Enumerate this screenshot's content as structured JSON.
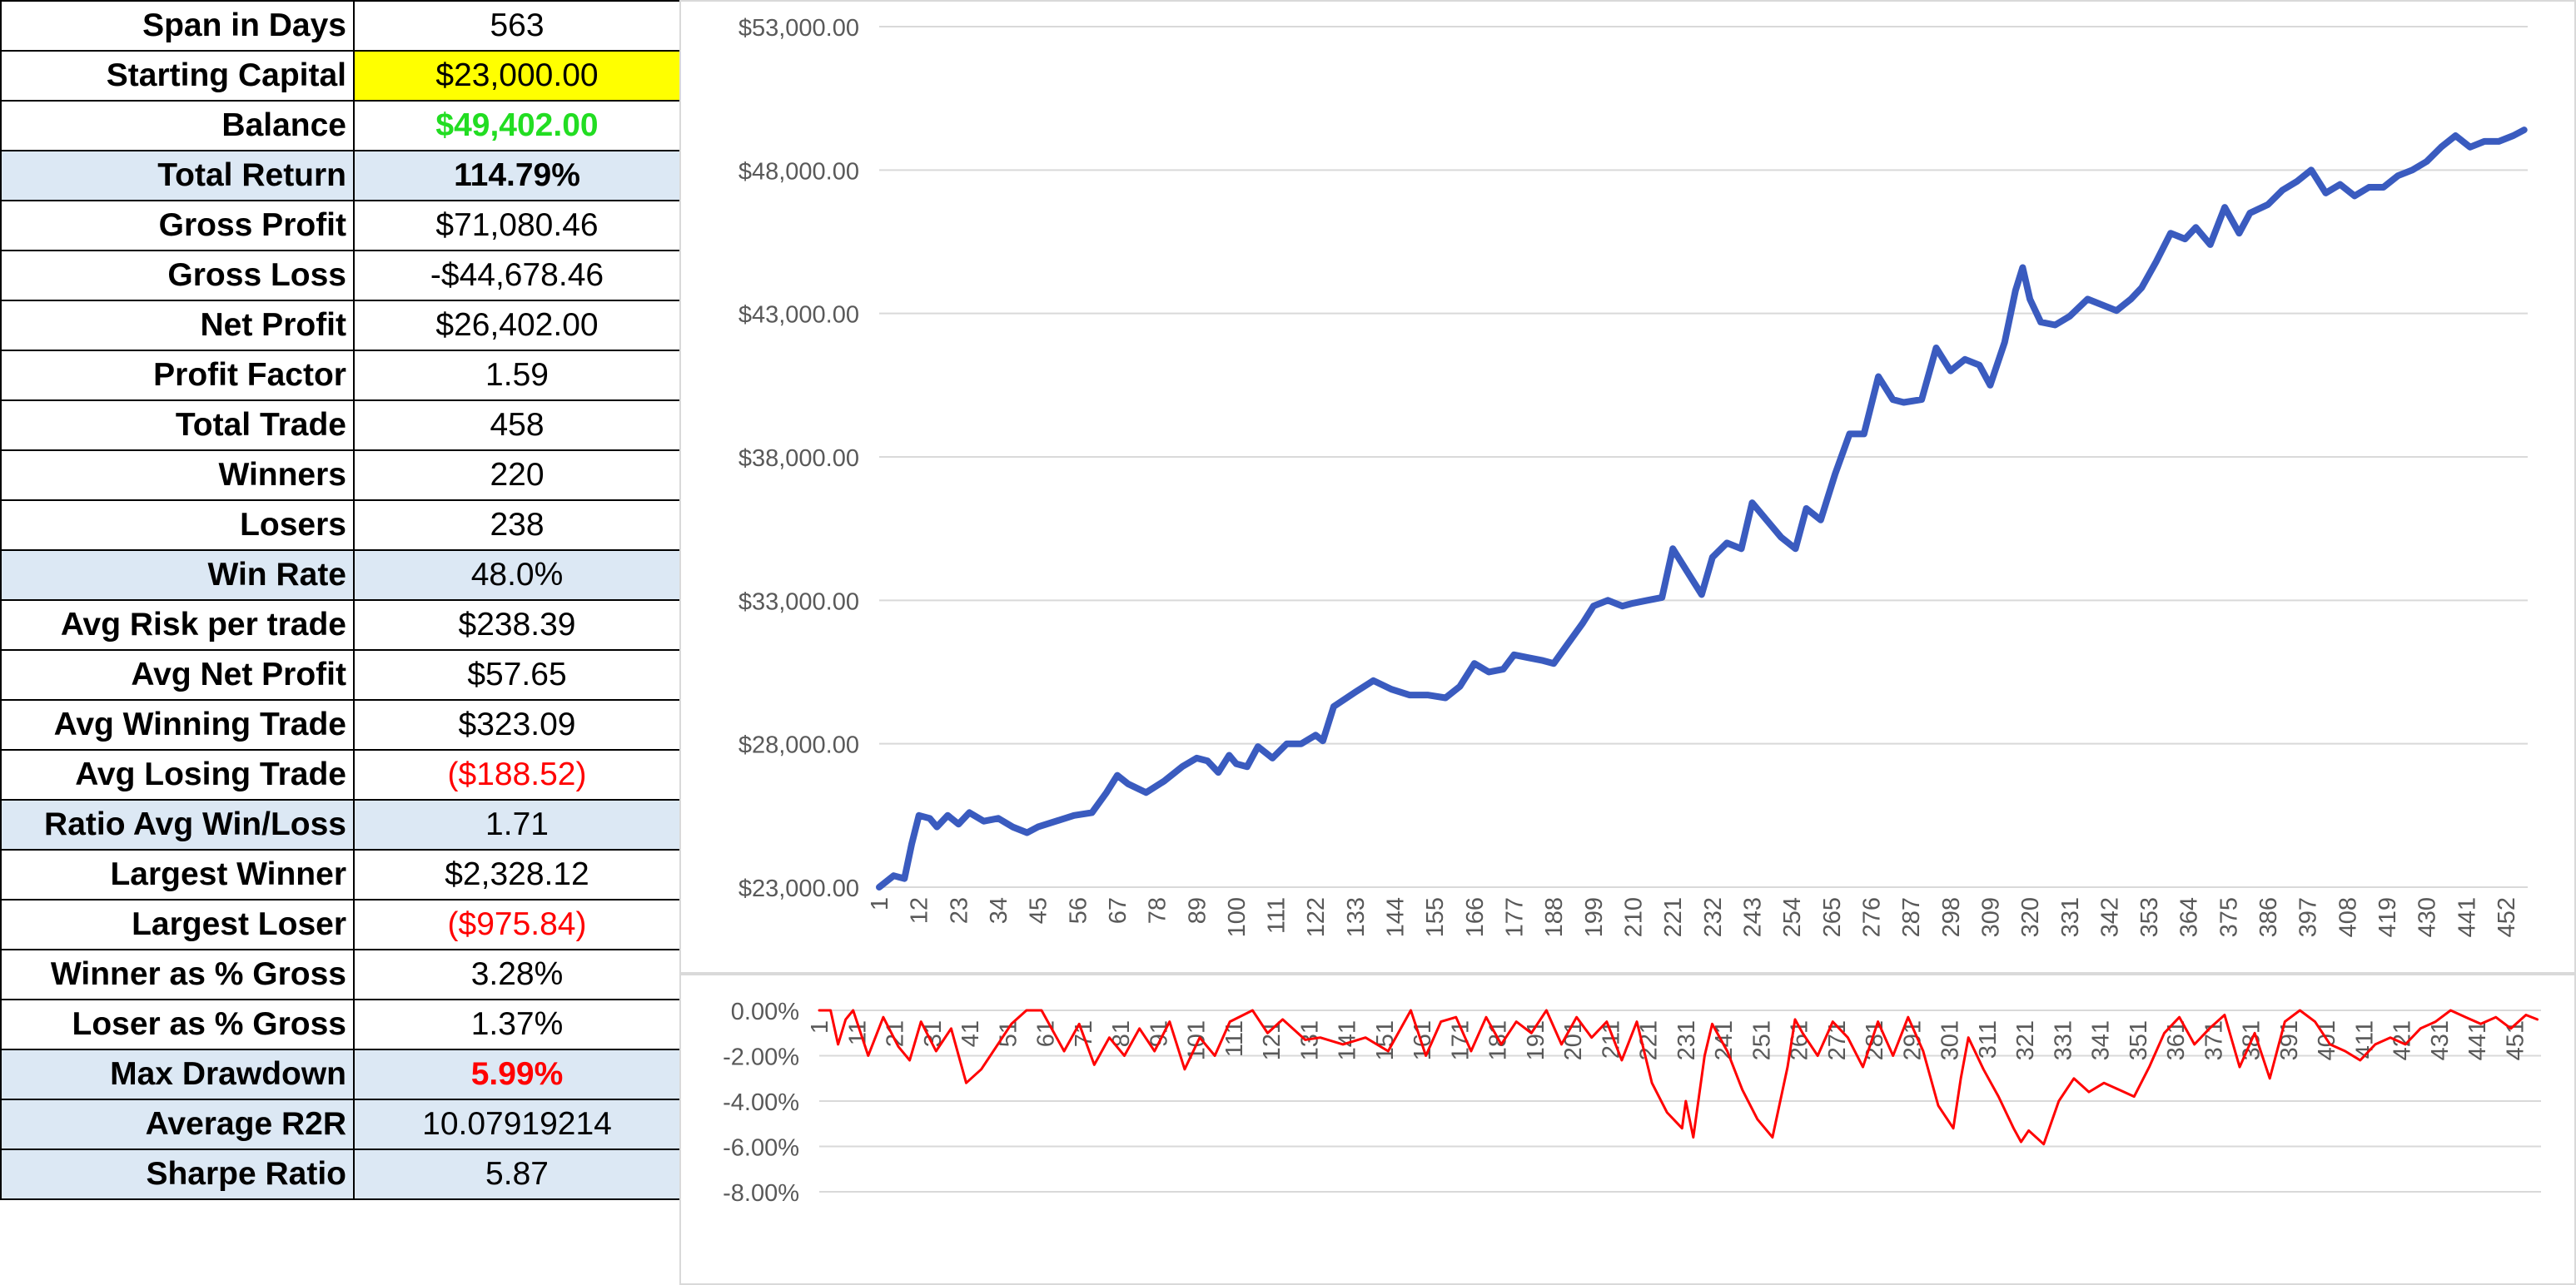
{
  "stats": [
    {
      "label": "Span in Days",
      "value": "563",
      "style": ""
    },
    {
      "label": "Starting Capital",
      "value": "$23,000.00",
      "style": "yel"
    },
    {
      "label": "Balance",
      "value": "$49,402.00",
      "style": "green"
    },
    {
      "label": "Total Return",
      "value": "114.79%",
      "style": "hl bold"
    },
    {
      "label": "Gross Profit",
      "value": "$71,080.46",
      "style": ""
    },
    {
      "label": "Gross Loss",
      "value": "-$44,678.46",
      "style": ""
    },
    {
      "label": "Net Profit",
      "value": "$26,402.00",
      "style": ""
    },
    {
      "label": "Profit Factor",
      "value": "1.59",
      "style": ""
    },
    {
      "label": "Total Trade",
      "value": "458",
      "style": ""
    },
    {
      "label": "Winners",
      "value": "220",
      "style": ""
    },
    {
      "label": "Losers",
      "value": "238",
      "style": ""
    },
    {
      "label": "Win Rate",
      "value": "48.0%",
      "style": "hl"
    },
    {
      "label": "Avg Risk per trade",
      "value": "$238.39",
      "style": ""
    },
    {
      "label": "Avg Net Profit",
      "value": "$57.65",
      "style": ""
    },
    {
      "label": "Avg Winning Trade",
      "value": "$323.09",
      "style": ""
    },
    {
      "label": "Avg Losing Trade",
      "value": "($188.52)",
      "style": "red"
    },
    {
      "label": "Ratio Avg Win/Loss",
      "value": "1.71",
      "style": "hl"
    },
    {
      "label": "Largest Winner",
      "value": "$2,328.12",
      "style": ""
    },
    {
      "label": "Largest Loser",
      "value": "($975.84)",
      "style": "red"
    },
    {
      "label": "Winner as % Gross",
      "value": "3.28%",
      "style": ""
    },
    {
      "label": "Loser as % Gross",
      "value": "1.37%",
      "style": ""
    },
    {
      "label": "Max Drawdown",
      "value": "5.99%",
      "style": "hl redbold"
    },
    {
      "label": "Average R2R",
      "value": "10.07919214",
      "style": "hl"
    },
    {
      "label": "Sharpe Ratio",
      "value": "5.87",
      "style": "hl"
    }
  ],
  "chart_data": [
    {
      "type": "line",
      "series": [
        {
          "color": "#3a5bbf",
          "x": [
            1,
            5,
            8,
            10,
            12,
            15,
            17,
            20,
            23,
            26,
            30,
            34,
            38,
            42,
            45,
            50,
            55,
            60,
            64,
            67,
            70,
            75,
            80,
            85,
            89,
            92,
            95,
            98,
            100,
            103,
            106,
            110,
            114,
            118,
            122,
            124,
            127,
            133,
            138,
            143,
            148,
            153,
            158,
            162,
            166,
            170,
            174,
            177,
            181,
            185,
            188,
            192,
            196,
            199,
            203,
            207,
            210,
            214,
            218,
            221,
            225,
            229,
            232,
            236,
            240,
            243,
            247,
            251,
            255,
            258,
            262,
            266,
            270,
            274,
            278,
            282,
            285,
            290,
            294,
            298,
            302,
            306,
            309,
            313,
            316,
            318,
            320,
            323,
            327,
            331,
            336,
            340,
            344,
            348,
            351,
            355,
            359,
            363,
            366,
            370,
            374,
            378,
            381,
            386,
            390,
            394,
            398,
            402,
            406,
            410,
            414,
            418,
            422,
            426,
            430,
            434,
            438,
            442,
            446,
            450,
            454,
            457
          ],
          "y": [
            23000,
            23400,
            23300,
            24500,
            25500,
            25400,
            25100,
            25500,
            25200,
            25600,
            25300,
            25400,
            25100,
            24900,
            25100,
            25300,
            25500,
            25600,
            26300,
            26900,
            26600,
            26300,
            26700,
            27200,
            27500,
            27400,
            27000,
            27600,
            27300,
            27200,
            27900,
            27500,
            28000,
            28000,
            28300,
            28100,
            29300,
            29800,
            30200,
            29900,
            29700,
            29700,
            29600,
            30000,
            30800,
            30500,
            30600,
            31100,
            31000,
            30900,
            30800,
            31500,
            32200,
            32800,
            33000,
            32800,
            32900,
            33000,
            33100,
            34800,
            34000,
            33200,
            34500,
            35000,
            34800,
            36400,
            35800,
            35200,
            34800,
            36200,
            35800,
            37400,
            38800,
            38800,
            40800,
            40000,
            39900,
            40000,
            41800,
            41000,
            41400,
            41200,
            40500,
            42000,
            43800,
            44600,
            43500,
            42700,
            42600,
            42900,
            43500,
            43300,
            43100,
            43500,
            43900,
            44800,
            45800,
            45600,
            46000,
            45400,
            46700,
            45800,
            46500,
            46800,
            47300,
            47600,
            48000,
            47200,
            47500,
            47100,
            47400,
            47400,
            47800,
            48000,
            48300,
            48800,
            49200,
            48800,
            49000,
            49000,
            49200,
            49400
          ]
        }
      ],
      "ylim": [
        23000,
        53000
      ],
      "yticks": [
        "$23,000.00",
        "$28,000.00",
        "$33,000.00",
        "$38,000.00",
        "$43,000.00",
        "$48,000.00",
        "$53,000.00"
      ],
      "xticks": [
        "1",
        "12",
        "23",
        "34",
        "45",
        "56",
        "67",
        "78",
        "89",
        "100",
        "111",
        "122",
        "133",
        "144",
        "155",
        "166",
        "177",
        "188",
        "199",
        "210",
        "221",
        "232",
        "243",
        "254",
        "265",
        "276",
        "287",
        "298",
        "309",
        "320",
        "331",
        "342",
        "353",
        "364",
        "375",
        "386",
        "397",
        "408",
        "419",
        "430",
        "441",
        "452"
      ],
      "xmax": 458
    },
    {
      "type": "line",
      "series": [
        {
          "color": "#ff0000",
          "x": [
            1,
            4,
            6,
            8,
            10,
            14,
            18,
            22,
            25,
            28,
            32,
            36,
            40,
            44,
            48,
            52,
            56,
            60,
            66,
            70,
            74,
            78,
            82,
            86,
            90,
            94,
            98,
            102,
            106,
            110,
            116,
            120,
            124,
            130,
            134,
            140,
            146,
            152,
            158,
            162,
            166,
            170,
            174,
            178,
            182,
            186,
            190,
            194,
            198,
            202,
            206,
            210,
            214,
            218,
            222,
            226,
            230,
            231,
            233,
            236,
            238,
            242,
            246,
            250,
            254,
            258,
            260,
            262,
            266,
            270,
            274,
            278,
            282,
            286,
            290,
            294,
            298,
            302,
            304,
            306,
            310,
            312,
            314,
            318,
            320,
            322,
            326,
            330,
            334,
            338,
            342,
            346,
            350,
            354,
            358,
            362,
            366,
            370,
            374,
            378,
            382,
            386,
            390,
            394,
            398,
            402,
            406,
            410,
            414,
            418,
            422,
            426,
            430,
            434,
            438,
            442,
            446,
            450,
            454,
            457
          ],
          "y": [
            0,
            0,
            -1.5,
            -0.4,
            0,
            -2,
            -0.3,
            -1.6,
            -2.2,
            -0.5,
            -1.8,
            -0.8,
            -3.2,
            -2.6,
            -1.6,
            -0.6,
            0,
            0,
            -1.8,
            -0.6,
            -2.4,
            -1.2,
            -2,
            -0.8,
            -1.8,
            -0.5,
            -2.6,
            -1.2,
            -2,
            -0.5,
            0,
            -1,
            -0.4,
            -1.3,
            -1.2,
            -1.5,
            -1.2,
            -1.8,
            0,
            -2,
            -0.5,
            -0.3,
            -1.8,
            -0.3,
            -1.5,
            -0.5,
            -1,
            0,
            -1.5,
            -0.3,
            -1.2,
            -0.5,
            -2.2,
            -0.5,
            -3.2,
            -4.5,
            -5.2,
            -4,
            -5.6,
            -2,
            -0.6,
            -1.8,
            -3.5,
            -4.8,
            -5.6,
            -2.5,
            -0.4,
            -1,
            -2,
            -0.5,
            -1.2,
            -2.5,
            -0.5,
            -2,
            -0.3,
            -1.8,
            -4.2,
            -5.2,
            -3,
            -1.2,
            -2.6,
            -3.2,
            -3.8,
            -5.2,
            -5.8,
            -5.3,
            -5.9,
            -4,
            -3,
            -3.6,
            -3.2,
            -3.5,
            -3.8,
            -2.5,
            -1,
            -0.3,
            -1.5,
            -0.8,
            -0.2,
            -2.5,
            -1,
            -3,
            -0.5,
            0,
            -0.5,
            -1.5,
            -1.8,
            -2.2,
            -1.5,
            -1.2,
            -1.5,
            -0.8,
            -0.5,
            0,
            -0.3,
            -0.6,
            -0.3,
            -0.8,
            -0.2,
            -0.4
          ]
        }
      ],
      "ylim": [
        -8,
        0
      ],
      "yticks": [
        "-8.00%",
        "-6.00%",
        "-4.00%",
        "-2.00%",
        "0.00%"
      ],
      "xticks": [
        "1",
        "11",
        "21",
        "31",
        "41",
        "51",
        "61",
        "71",
        "81",
        "91",
        "101",
        "111",
        "121",
        "131",
        "141",
        "151",
        "161",
        "171",
        "181",
        "191",
        "201",
        "211",
        "221",
        "231",
        "241",
        "251",
        "261",
        "271",
        "281",
        "291",
        "301",
        "311",
        "321",
        "331",
        "341",
        "351",
        "361",
        "371",
        "381",
        "391",
        "401",
        "411",
        "421",
        "431",
        "441",
        "451"
      ],
      "xmax": 458
    }
  ]
}
